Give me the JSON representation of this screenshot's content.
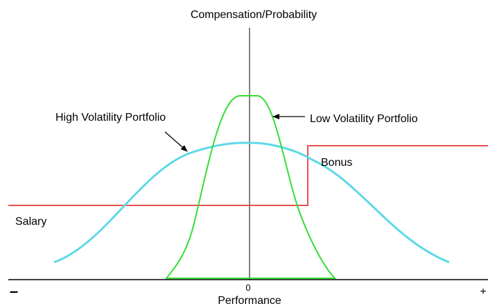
{
  "axes": {
    "y_label": "Compensation/Probability",
    "x_label": "Performance",
    "origin": "0",
    "minus": "–",
    "plus": "+"
  },
  "labels": {
    "high_volatility": "High Volatility Portfolio",
    "low_volatility": "Low Volatility Portfolio",
    "bonus": "Bonus",
    "salary": "Salary"
  }
}
